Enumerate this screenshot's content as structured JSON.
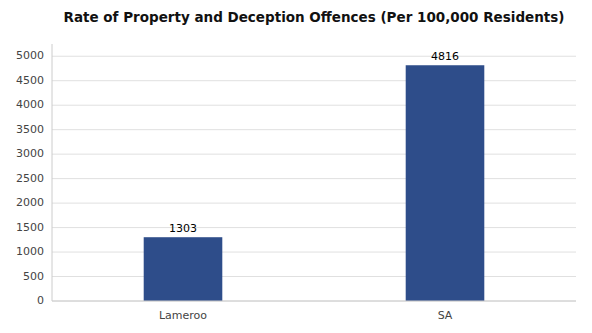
{
  "chart_data": {
    "type": "bar",
    "title": "Rate of Property and Deception Offences (Per 100,000 Residents)",
    "categories": [
      "Lameroo",
      "SA"
    ],
    "values": [
      1303,
      4816
    ],
    "color": "#2e4d8a",
    "ylim": [
      0,
      5250
    ],
    "yticks": [
      0,
      500,
      1000,
      1500,
      2000,
      2500,
      3000,
      3500,
      4000,
      4500,
      5000
    ],
    "grid": true,
    "data_labels": true
  }
}
